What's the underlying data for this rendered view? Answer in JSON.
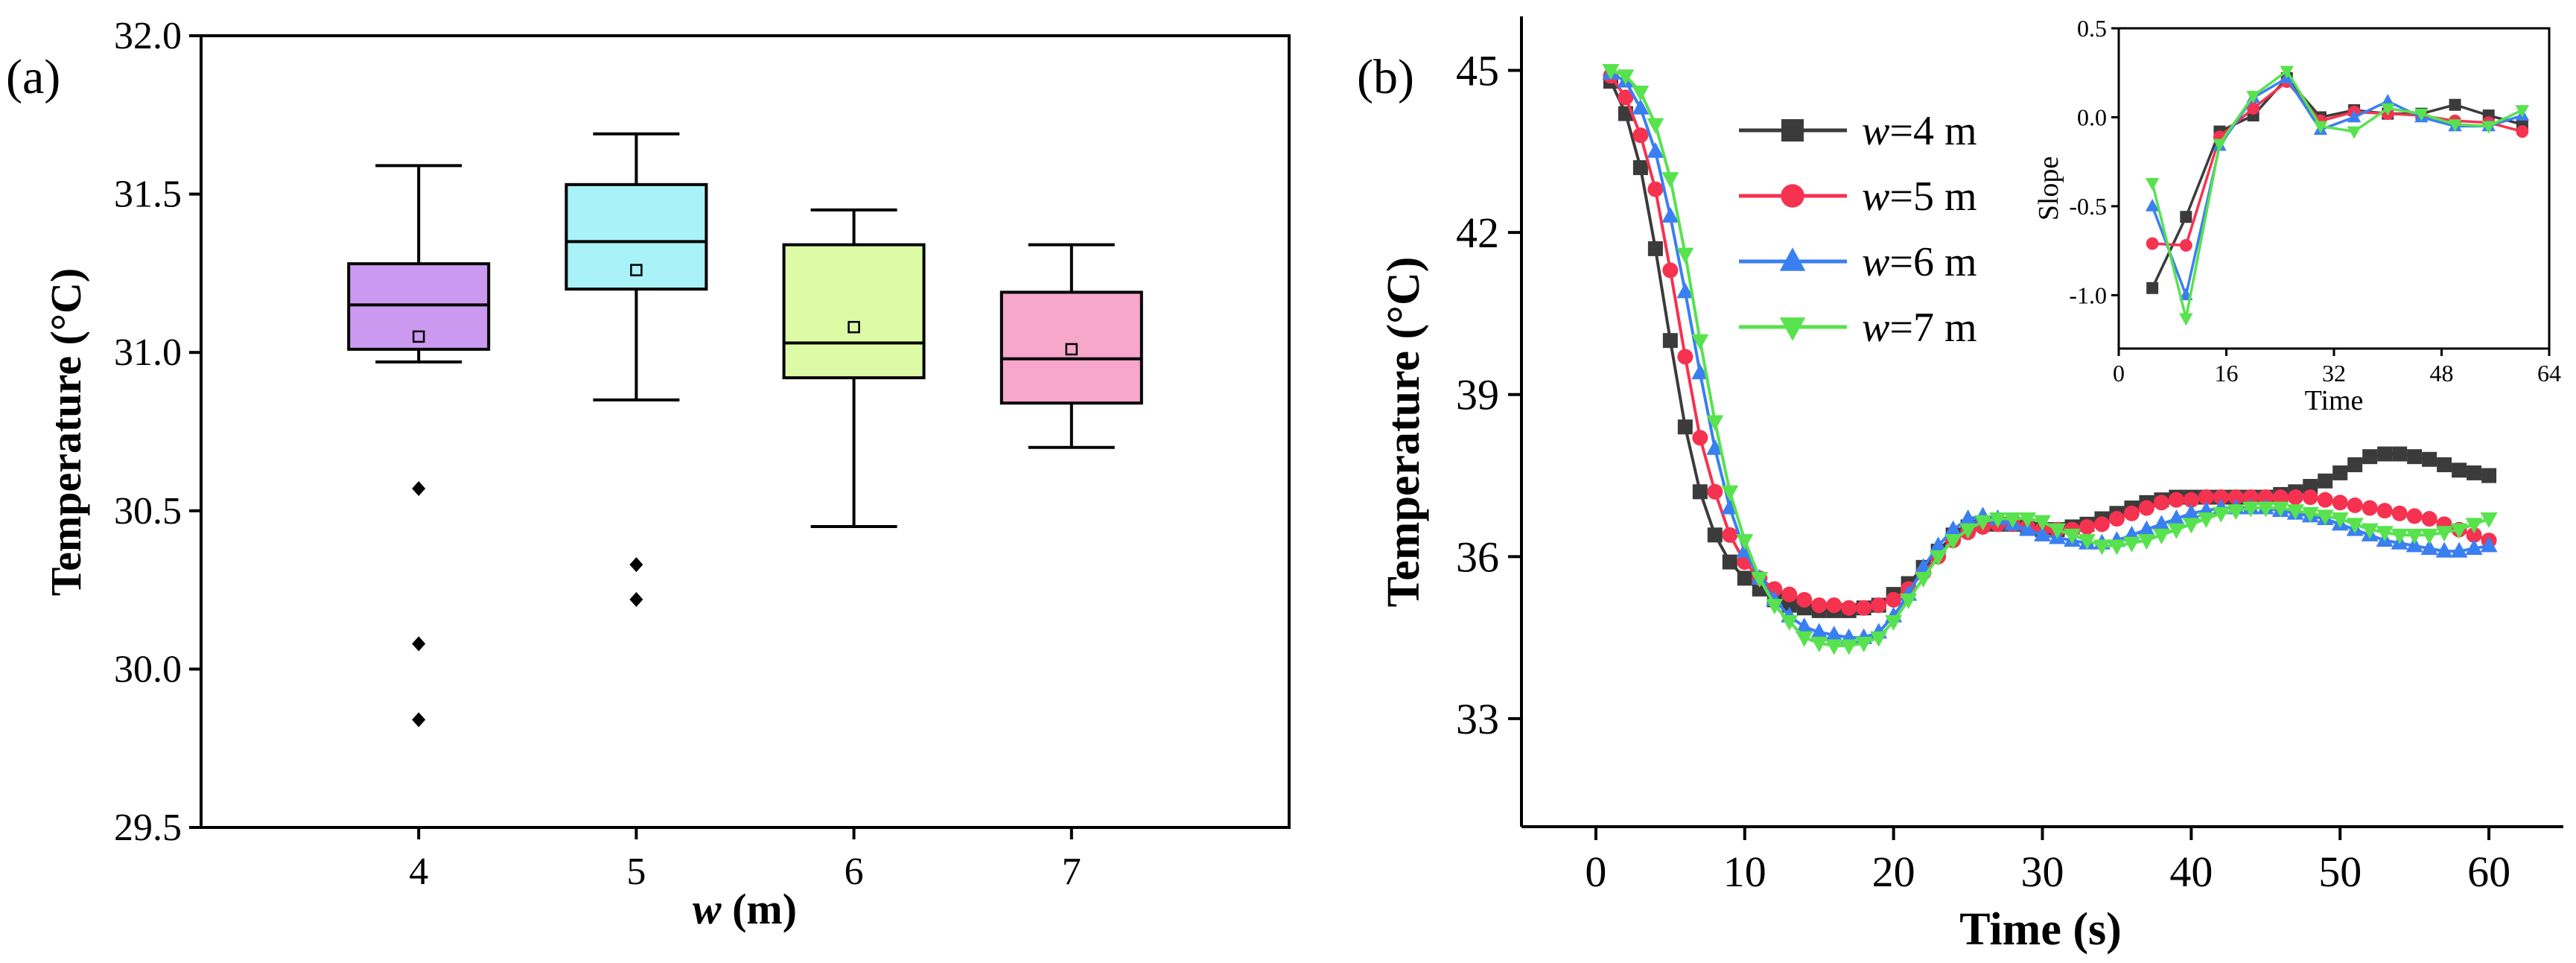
{
  "chart_data": [
    {
      "type": "box",
      "panel_label": "(a)",
      "xlabel_var": "w",
      "xlabel_unit": " (m)",
      "ylabel": "Temperature (°C)",
      "ylim": [
        29.5,
        32.0
      ],
      "yticks": [
        "29.5",
        "30.0",
        "30.5",
        "31.0",
        "31.5",
        "32.0"
      ],
      "categories": [
        "4",
        "5",
        "6",
        "7"
      ],
      "colors": [
        "#cc99f0",
        "#a8f2f8",
        "#ddfba6",
        "#f7a6cc"
      ],
      "boxes": [
        {
          "whisker_low": 30.97,
          "q1": 31.01,
          "median": 31.15,
          "q3": 31.28,
          "whisker_high": 31.59,
          "mean": 31.05,
          "outliers": [
            30.57,
            30.08,
            29.84
          ]
        },
        {
          "whisker_low": 30.85,
          "q1": 31.2,
          "median": 31.35,
          "q3": 31.53,
          "whisker_high": 31.69,
          "mean": 31.26,
          "outliers": [
            30.33,
            30.22
          ]
        },
        {
          "whisker_low": 30.45,
          "q1": 30.92,
          "median": 31.03,
          "q3": 31.34,
          "whisker_high": 31.45,
          "mean": 31.08,
          "outliers": []
        },
        {
          "whisker_low": 30.7,
          "q1": 30.84,
          "median": 30.98,
          "q3": 31.19,
          "whisker_high": 31.34,
          "mean": 31.01,
          "outliers": []
        }
      ]
    },
    {
      "type": "line",
      "panel_label": "(b)",
      "xlabel": "Time (s)",
      "ylabel": "Temperature (°C)",
      "xlim": [
        -5,
        65
      ],
      "ylim": [
        31,
        46
      ],
      "xticks": [
        0,
        10,
        20,
        30,
        40,
        50,
        60
      ],
      "yticks": [
        33,
        36,
        39,
        42,
        45
      ],
      "x_start": 1,
      "x_step": 1,
      "series": [
        {
          "name_var": "w",
          "name_rest": "=4 m",
          "color": "#3b3b3b",
          "marker": "square",
          "values": [
            44.8,
            44.2,
            43.2,
            41.7,
            40.0,
            38.4,
            37.2,
            36.4,
            35.9,
            35.6,
            35.4,
            35.2,
            35.1,
            35.05,
            35.0,
            35.0,
            35.0,
            35.05,
            35.1,
            35.3,
            35.5,
            35.8,
            36.1,
            36.4,
            36.55,
            36.6,
            36.6,
            36.6,
            36.55,
            36.5,
            36.5,
            36.55,
            36.6,
            36.7,
            36.8,
            36.9,
            37.0,
            37.05,
            37.1,
            37.1,
            37.1,
            37.1,
            37.1,
            37.1,
            37.1,
            37.15,
            37.2,
            37.3,
            37.4,
            37.55,
            37.7,
            37.85,
            37.9,
            37.9,
            37.85,
            37.8,
            37.7,
            37.6,
            37.55,
            37.5
          ]
        },
        {
          "name_var": "w",
          "name_rest": "=5 m",
          "color": "#f5324f",
          "marker": "circle",
          "values": [
            44.9,
            44.5,
            43.8,
            42.8,
            41.3,
            39.7,
            38.2,
            37.2,
            36.4,
            35.9,
            35.6,
            35.4,
            35.3,
            35.2,
            35.1,
            35.1,
            35.05,
            35.05,
            35.1,
            35.2,
            35.4,
            35.7,
            36.0,
            36.3,
            36.45,
            36.55,
            36.6,
            36.6,
            36.55,
            36.5,
            36.5,
            36.5,
            36.55,
            36.6,
            36.7,
            36.8,
            36.9,
            37.0,
            37.05,
            37.05,
            37.1,
            37.1,
            37.1,
            37.1,
            37.1,
            37.1,
            37.1,
            37.1,
            37.05,
            37.0,
            36.95,
            36.9,
            36.85,
            36.8,
            36.75,
            36.7,
            36.6,
            36.5,
            36.4,
            36.3
          ]
        },
        {
          "name_var": "w",
          "name_rest": "=6 m",
          "color": "#3a7ff2",
          "marker": "triangle-up",
          "values": [
            44.95,
            44.8,
            44.3,
            43.5,
            42.3,
            40.9,
            39.4,
            38.0,
            36.9,
            36.1,
            35.6,
            35.2,
            34.9,
            34.7,
            34.6,
            34.55,
            34.5,
            34.5,
            34.6,
            34.9,
            35.3,
            35.8,
            36.2,
            36.5,
            36.7,
            36.75,
            36.7,
            36.6,
            36.5,
            36.4,
            36.35,
            36.3,
            36.25,
            36.25,
            36.3,
            36.4,
            36.5,
            36.6,
            36.7,
            36.8,
            36.85,
            36.9,
            36.9,
            36.9,
            36.9,
            36.85,
            36.8,
            36.75,
            36.7,
            36.6,
            36.5,
            36.4,
            36.3,
            36.25,
            36.2,
            36.15,
            36.1,
            36.1,
            36.15,
            36.2
          ]
        },
        {
          "name_var": "w",
          "name_rest": "=7 m",
          "color": "#57e24e",
          "marker": "triangle-down",
          "values": [
            45.0,
            44.9,
            44.6,
            44.0,
            43.0,
            41.6,
            40.0,
            38.5,
            37.2,
            36.3,
            35.6,
            35.1,
            34.8,
            34.5,
            34.4,
            34.35,
            34.35,
            34.4,
            34.5,
            34.8,
            35.2,
            35.6,
            36.0,
            36.3,
            36.5,
            36.65,
            36.7,
            36.7,
            36.7,
            36.65,
            36.5,
            36.4,
            36.3,
            36.2,
            36.2,
            36.25,
            36.3,
            36.4,
            36.5,
            36.6,
            36.7,
            36.8,
            36.85,
            36.9,
            36.9,
            36.9,
            36.85,
            36.8,
            36.75,
            36.7,
            36.6,
            36.5,
            36.45,
            36.4,
            36.4,
            36.4,
            36.45,
            36.5,
            36.6,
            36.7
          ]
        }
      ],
      "inset": {
        "xlabel": "Time",
        "ylabel": "Slope",
        "xlim": [
          0,
          64
        ],
        "ylim": [
          -1.3,
          0.5
        ],
        "xticks": [
          0,
          16,
          32,
          48,
          64
        ],
        "yticks": [
          "-1.0",
          "-0.5",
          "0.0",
          "0.5"
        ],
        "x": [
          5,
          10,
          15,
          20,
          25,
          30,
          35,
          40,
          45,
          50,
          55,
          60
        ],
        "series": [
          {
            "color": "#3b3b3b",
            "marker": "square",
            "values": [
              -0.96,
              -0.56,
              -0.08,
              0.01,
              0.22,
              0.0,
              0.04,
              0.02,
              0.02,
              0.07,
              0.01,
              -0.04
            ]
          },
          {
            "color": "#f5324f",
            "marker": "circle",
            "values": [
              -0.71,
              -0.72,
              -0.11,
              0.05,
              0.2,
              -0.02,
              0.03,
              0.02,
              0.01,
              -0.02,
              -0.03,
              -0.08
            ]
          },
          {
            "color": "#3a7ff2",
            "marker": "triangle-up",
            "values": [
              -0.5,
              -1.0,
              -0.16,
              0.11,
              0.22,
              -0.07,
              0.0,
              0.09,
              0.0,
              -0.05,
              -0.05,
              0.01
            ]
          },
          {
            "color": "#57e24e",
            "marker": "triangle-down",
            "values": [
              -0.37,
              -1.13,
              -0.15,
              0.12,
              0.26,
              -0.05,
              -0.08,
              0.05,
              0.02,
              -0.04,
              -0.05,
              0.04
            ]
          }
        ]
      }
    }
  ]
}
